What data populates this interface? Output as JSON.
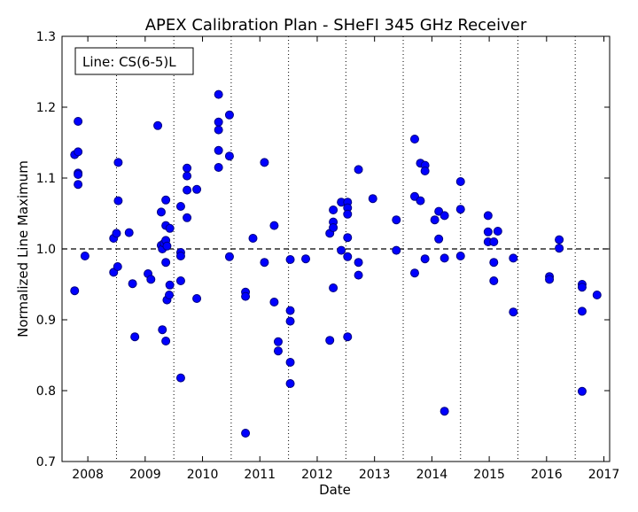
{
  "chart_data": {
    "type": "scatter",
    "title": "APEX Calibration Plan - SHeFI 345 GHz Receiver",
    "xlabel": "Date",
    "ylabel": "Normalized Line Maximum",
    "legend_text": "Line: CS(6-5)L",
    "legend_position": "top-left",
    "xlim": [
      2007.55,
      2017.1
    ],
    "ylim": [
      0.7,
      1.3
    ],
    "x_ticks": [
      2008,
      2009,
      2010,
      2011,
      2012,
      2013,
      2014,
      2015,
      2016,
      2017
    ],
    "x_tick_labels": [
      "2008",
      "2009",
      "2010",
      "2011",
      "2012",
      "2013",
      "2014",
      "2015",
      "2016",
      "2017"
    ],
    "y_ticks": [
      0.7,
      0.8,
      0.9,
      1.0,
      1.1,
      1.2,
      1.3
    ],
    "y_tick_labels": [
      "0.7",
      "0.8",
      "0.9",
      "1.0",
      "1.1",
      "1.2",
      "1.3"
    ],
    "reference_line_y": 1.0,
    "vertical_dotted_lines_x": [
      2008.5,
      2009.5,
      2010.5,
      2011.5,
      2012.5,
      2013.5,
      2014.5,
      2015.5,
      2016.5
    ],
    "marker_color": "#0000ff",
    "marker_edge_color": "#00007f",
    "points": [
      [
        2007.77,
        1.133
      ],
      [
        2007.83,
        1.137
      ],
      [
        2007.83,
        1.18
      ],
      [
        2007.83,
        1.107
      ],
      [
        2007.83,
        1.105
      ],
      [
        2007.83,
        1.091
      ],
      [
        2007.77,
        0.941
      ],
      [
        2007.95,
        0.99
      ],
      [
        2008.45,
        1.015
      ],
      [
        2008.5,
        1.022
      ],
      [
        2008.53,
        1.122
      ],
      [
        2008.53,
        1.068
      ],
      [
        2008.45,
        0.967
      ],
      [
        2008.52,
        0.975
      ],
      [
        2008.72,
        1.023
      ],
      [
        2008.78,
        0.951
      ],
      [
        2008.82,
        0.876
      ],
      [
        2009.05,
        0.965
      ],
      [
        2009.1,
        0.957
      ],
      [
        2009.22,
        1.174
      ],
      [
        2009.28,
        1.052
      ],
      [
        2009.28,
        1.005
      ],
      [
        2009.3,
        1.0
      ],
      [
        2009.33,
        1.008
      ],
      [
        2009.36,
        1.012
      ],
      [
        2009.38,
        1.004
      ],
      [
        2009.36,
        1.069
      ],
      [
        2009.36,
        1.033
      ],
      [
        2009.43,
        1.029
      ],
      [
        2009.36,
        0.981
      ],
      [
        2009.38,
        0.928
      ],
      [
        2009.42,
        0.935
      ],
      [
        2009.43,
        0.949
      ],
      [
        2009.3,
        0.886
      ],
      [
        2009.36,
        0.87
      ],
      [
        2009.62,
        1.06
      ],
      [
        2009.62,
        0.995
      ],
      [
        2009.62,
        0.99
      ],
      [
        2009.62,
        0.955
      ],
      [
        2009.62,
        0.818
      ],
      [
        2009.73,
        1.114
      ],
      [
        2009.73,
        1.103
      ],
      [
        2009.73,
        1.083
      ],
      [
        2009.73,
        1.044
      ],
      [
        2009.9,
        1.084
      ],
      [
        2009.9,
        0.93
      ],
      [
        2010.28,
        1.218
      ],
      [
        2010.28,
        1.179
      ],
      [
        2010.28,
        1.168
      ],
      [
        2010.28,
        1.139
      ],
      [
        2010.28,
        1.115
      ],
      [
        2010.47,
        1.189
      ],
      [
        2010.47,
        1.131
      ],
      [
        2010.47,
        0.989
      ],
      [
        2010.75,
        0.939
      ],
      [
        2010.75,
        0.933
      ],
      [
        2010.75,
        0.74
      ],
      [
        2010.88,
        1.015
      ],
      [
        2011.08,
        1.122
      ],
      [
        2011.08,
        0.981
      ],
      [
        2011.25,
        1.033
      ],
      [
        2011.25,
        0.925
      ],
      [
        2011.32,
        0.869
      ],
      [
        2011.32,
        0.856
      ],
      [
        2011.53,
        0.985
      ],
      [
        2011.53,
        0.913
      ],
      [
        2011.53,
        0.898
      ],
      [
        2011.53,
        0.84
      ],
      [
        2011.53,
        0.81
      ],
      [
        2011.8,
        0.986
      ],
      [
        2012.22,
        1.022
      ],
      [
        2012.22,
        0.871
      ],
      [
        2012.28,
        1.055
      ],
      [
        2012.28,
        1.038
      ],
      [
        2012.28,
        1.03
      ],
      [
        2012.28,
        0.945
      ],
      [
        2012.42,
        1.066
      ],
      [
        2012.42,
        0.998
      ],
      [
        2012.53,
        1.066
      ],
      [
        2012.53,
        1.058
      ],
      [
        2012.53,
        1.049
      ],
      [
        2012.53,
        1.016
      ],
      [
        2012.53,
        0.989
      ],
      [
        2012.53,
        0.876
      ],
      [
        2012.72,
        1.112
      ],
      [
        2012.72,
        0.981
      ],
      [
        2012.72,
        0.963
      ],
      [
        2012.97,
        1.071
      ],
      [
        2013.38,
        1.041
      ],
      [
        2013.38,
        0.998
      ],
      [
        2013.7,
        1.155
      ],
      [
        2013.7,
        1.074
      ],
      [
        2013.7,
        0.966
      ],
      [
        2013.8,
        1.121
      ],
      [
        2013.8,
        1.068
      ],
      [
        2013.88,
        1.118
      ],
      [
        2013.88,
        1.11
      ],
      [
        2013.88,
        0.986
      ],
      [
        2014.05,
        1.041
      ],
      [
        2014.12,
        1.053
      ],
      [
        2014.12,
        1.014
      ],
      [
        2014.22,
        1.047
      ],
      [
        2014.22,
        0.987
      ],
      [
        2014.22,
        0.771
      ],
      [
        2014.5,
        1.095
      ],
      [
        2014.5,
        1.056
      ],
      [
        2014.5,
        0.99
      ],
      [
        2014.98,
        1.047
      ],
      [
        2014.98,
        1.024
      ],
      [
        2014.98,
        1.01
      ],
      [
        2015.08,
        1.01
      ],
      [
        2015.08,
        0.981
      ],
      [
        2015.08,
        0.955
      ],
      [
        2015.15,
        1.025
      ],
      [
        2015.42,
        0.987
      ],
      [
        2015.42,
        0.911
      ],
      [
        2016.05,
        0.961
      ],
      [
        2016.05,
        0.957
      ],
      [
        2016.22,
        1.013
      ],
      [
        2016.22,
        1.001
      ],
      [
        2016.62,
        0.95
      ],
      [
        2016.62,
        0.946
      ],
      [
        2016.62,
        0.912
      ],
      [
        2016.62,
        0.799
      ],
      [
        2016.88,
        0.935
      ]
    ]
  }
}
